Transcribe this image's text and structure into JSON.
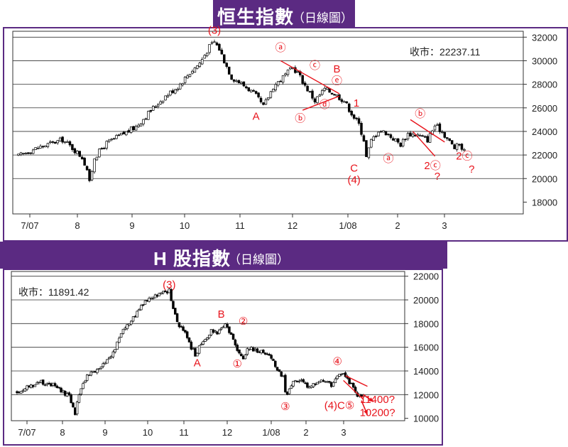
{
  "chart_data": [
    {
      "type": "candlestick",
      "title": "恒生指數",
      "subtitle": "（日線圖）",
      "close_label": "收市：22237.11",
      "y_ticks": [
        18000,
        20000,
        22000,
        24000,
        26000,
        28000,
        30000,
        32000
      ],
      "ylim": [
        17000,
        32500
      ],
      "x_ticks": [
        "7/07",
        "8",
        "9",
        "10",
        "11",
        "12",
        "1/08",
        "2",
        "3"
      ],
      "ylabel": "",
      "xlabel": "",
      "path": [
        [
          0,
          21900
        ],
        [
          5,
          22400
        ],
        [
          12,
          22900
        ],
        [
          18,
          23300
        ],
        [
          22,
          22600
        ],
        [
          26,
          21800
        ],
        [
          28,
          20800
        ],
        [
          29,
          19600
        ],
        [
          31,
          21800
        ],
        [
          36,
          23000
        ],
        [
          42,
          23700
        ],
        [
          48,
          24400
        ],
        [
          55,
          26000
        ],
        [
          60,
          27000
        ],
        [
          65,
          27800
        ],
        [
          70,
          29000
        ],
        [
          74,
          29800
        ],
        [
          78,
          31200
        ],
        [
          80,
          31600
        ],
        [
          82,
          31000
        ],
        [
          84,
          30000
        ],
        [
          87,
          28600
        ],
        [
          90,
          28200
        ],
        [
          94,
          27600
        ],
        [
          97,
          27000
        ],
        [
          100,
          26100
        ],
        [
          104,
          27800
        ],
        [
          108,
          28600
        ],
        [
          112,
          29400
        ],
        [
          114,
          29000
        ],
        [
          117,
          27900
        ],
        [
          121,
          26600
        ],
        [
          125,
          27600
        ],
        [
          129,
          27200
        ],
        [
          133,
          26600
        ],
        [
          137,
          25200
        ],
        [
          139,
          24600
        ],
        [
          141,
          23300
        ],
        [
          142,
          21800
        ],
        [
          144,
          23200
        ],
        [
          147,
          24100
        ],
        [
          150,
          23900
        ],
        [
          153,
          23400
        ],
        [
          156,
          22900
        ],
        [
          159,
          23800
        ],
        [
          163,
          23700
        ],
        [
          167,
          23300
        ],
        [
          170,
          24500
        ],
        [
          173,
          24000
        ],
        [
          175,
          23400
        ],
        [
          178,
          22600
        ],
        [
          180,
          22900
        ],
        [
          182,
          22300
        ]
      ],
      "annotations": [
        {
          "text": "(3)",
          "x": 80,
          "y": 32300
        },
        {
          "text": "A",
          "x": 97,
          "y": 25000
        },
        {
          "text": "ⓐ",
          "x": 107,
          "y": 30800
        },
        {
          "text": "ⓒ",
          "x": 121,
          "y": 29300
        },
        {
          "text": "B",
          "x": 130,
          "y": 29000
        },
        {
          "text": "ⓔ",
          "x": 130,
          "y": 28000
        },
        {
          "text": "ⓓ",
          "x": 125,
          "y": 26000
        },
        {
          "text": "ⓑ",
          "x": 115,
          "y": 24800
        },
        {
          "text": "1",
          "x": 138,
          "y": 26100
        },
        {
          "text": "C",
          "x": 137,
          "y": 20600
        },
        {
          "text": "(4)",
          "x": 137,
          "y": 19600
        },
        {
          "text": "ⓐ",
          "x": 151,
          "y": 21400
        },
        {
          "text": "ⓑ",
          "x": 164,
          "y": 25200
        },
        {
          "text": "2ⓒ",
          "x": 169,
          "y": 20800
        },
        {
          "text": "?",
          "x": 171,
          "y": 19900
        },
        {
          "text": "2ⓒ",
          "x": 182,
          "y": 21600
        },
        {
          "text": "?",
          "x": 185,
          "y": 20500
        }
      ],
      "trend_lines": [
        [
          [
            107,
            30000
          ],
          [
            131,
            27200
          ]
        ],
        [
          [
            116,
            25800
          ],
          [
            131,
            27000
          ]
        ],
        [
          [
            160,
            25000
          ],
          [
            174,
            23100
          ]
        ],
        [
          [
            161,
            24000
          ],
          [
            170,
            21900
          ]
        ]
      ]
    },
    {
      "type": "candlestick",
      "title": "H 股指數",
      "subtitle": "（日線圖）",
      "close_label": "收市：11891.42",
      "y_ticks": [
        10000,
        12000,
        14000,
        16000,
        18000,
        20000,
        22000
      ],
      "ylim": [
        9800,
        22400
      ],
      "x_ticks": [
        "7/07",
        "8",
        "9",
        "10",
        "11",
        "12",
        "1/08",
        "2",
        "3"
      ],
      "ylabel": "",
      "xlabel": "",
      "path": [
        [
          0,
          12200
        ],
        [
          6,
          12700
        ],
        [
          12,
          13100
        ],
        [
          18,
          12800
        ],
        [
          22,
          12300
        ],
        [
          26,
          11800
        ],
        [
          28,
          11000
        ],
        [
          29,
          10400
        ],
        [
          31,
          12100
        ],
        [
          35,
          13700
        ],
        [
          41,
          14100
        ],
        [
          47,
          15200
        ],
        [
          53,
          17600
        ],
        [
          58,
          18400
        ],
        [
          63,
          19700
        ],
        [
          68,
          20200
        ],
        [
          72,
          20500
        ],
        [
          76,
          20800
        ],
        [
          78,
          19200
        ],
        [
          80,
          18100
        ],
        [
          83,
          17500
        ],
        [
          86,
          16300
        ],
        [
          89,
          15400
        ],
        [
          93,
          16500
        ],
        [
          97,
          17400
        ],
        [
          100,
          17300
        ],
        [
          104,
          17800
        ],
        [
          106,
          17300
        ],
        [
          109,
          16100
        ],
        [
          111,
          15500
        ],
        [
          113,
          15000
        ],
        [
          115,
          15900
        ],
        [
          119,
          15800
        ],
        [
          123,
          15600
        ],
        [
          127,
          15200
        ],
        [
          130,
          14100
        ],
        [
          133,
          13500
        ],
        [
          134,
          12300
        ],
        [
          135,
          11900
        ],
        [
          138,
          13300
        ],
        [
          142,
          13100
        ],
        [
          146,
          12600
        ],
        [
          150,
          13000
        ],
        [
          154,
          13200
        ],
        [
          157,
          12800
        ],
        [
          160,
          13700
        ],
        [
          164,
          13600
        ],
        [
          167,
          12800
        ],
        [
          170,
          12000
        ],
        [
          173,
          11900
        ]
      ],
      "annotations": [
        {
          "text": "(3)",
          "x": 76,
          "y": 21000
        },
        {
          "text": "B",
          "x": 102,
          "y": 18500
        },
        {
          "text": "A",
          "x": 90,
          "y": 14400
        },
        {
          "text": "②",
          "x": 113,
          "y": 17900
        },
        {
          "text": "①",
          "x": 110,
          "y": 14300
        },
        {
          "text": "③",
          "x": 134,
          "y": 10700
        },
        {
          "text": "④",
          "x": 160,
          "y": 14500
        },
        {
          "text": "(4)C⑤",
          "x": 161,
          "y": 10800
        },
        {
          "text": "11400?",
          "x": 180,
          "y": 11300
        },
        {
          "text": "10200?",
          "x": 180,
          "y": 10200
        }
      ],
      "trend_lines": [
        [
          [
            164,
            13600
          ],
          [
            175,
            12700
          ]
        ],
        [
          [
            163,
            13200
          ],
          [
            173,
            11600
          ]
        ]
      ],
      "arrows": [
        [
          [
            173,
            12000
          ],
          [
            178,
            11400
          ]
        ],
        [
          [
            172,
            11500
          ],
          [
            175,
            10300
          ]
        ]
      ]
    }
  ]
}
